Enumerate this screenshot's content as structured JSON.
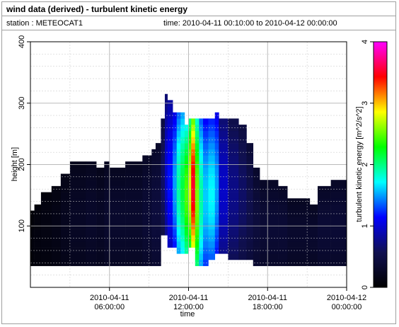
{
  "header": {
    "title": "wind data (derived) - turbulent kinetic energy",
    "station": "station : METEOCAT1",
    "time_range": "time: 2010-04-11 00:10:00 to 2010-04-12 00:00:00"
  },
  "chart_data": {
    "type": "heatmap",
    "title": "wind data (derived) - turbulent kinetic energy",
    "xlabel": "time",
    "ylabel": "height [m]",
    "colorbar_label": "turbulent kinetic energy [m^2/s^2]",
    "xlim": [
      0,
      24
    ],
    "ylim": [
      0,
      400
    ],
    "clim": [
      0,
      4
    ],
    "colormap": [
      "#000000",
      "#101050",
      "#0000ff",
      "#00ffff",
      "#00ff00",
      "#ffff00",
      "#ff0000",
      "#ff00ff"
    ],
    "x_ticks": [
      {
        "value": 6,
        "line1": "2010-04-11",
        "line2": "06:00:00"
      },
      {
        "value": 12,
        "line1": "2010-04-11",
        "line2": "12:00:00"
      },
      {
        "value": 18,
        "line1": "2010-04-11",
        "line2": "18:00:00"
      },
      {
        "value": 24,
        "line1": "2010-04-12",
        "line2": "00:00:00"
      }
    ],
    "y_ticks": [
      {
        "value": 100,
        "label": "100"
      },
      {
        "value": 200,
        "label": "200"
      },
      {
        "value": 300,
        "label": "300"
      },
      {
        "value": 400,
        "label": "400"
      }
    ],
    "colorbar_ticks": [
      {
        "value": 0,
        "label": "0"
      },
      {
        "value": 1,
        "label": "1"
      },
      {
        "value": 2,
        "label": "2"
      },
      {
        "value": 3,
        "label": "3"
      },
      {
        "value": 4,
        "label": "4"
      }
    ],
    "height_step": 10,
    "columns": [
      {
        "t0": 0.0,
        "t1": 0.3,
        "bottom": 35,
        "top": 125,
        "tke": [
          0.08
        ]
      },
      {
        "t0": 0.3,
        "t1": 0.8,
        "bottom": 35,
        "top": 135,
        "tke": [
          0.1
        ]
      },
      {
        "t0": 0.8,
        "t1": 1.6,
        "bottom": 35,
        "top": 155,
        "tke": [
          0.12
        ]
      },
      {
        "t0": 1.6,
        "t1": 2.3,
        "bottom": 35,
        "top": 165,
        "tke": [
          0.15
        ]
      },
      {
        "t0": 2.3,
        "t1": 3.0,
        "bottom": 35,
        "top": 185,
        "tke": [
          0.2
        ]
      },
      {
        "t0": 3.0,
        "t1": 4.2,
        "bottom": 35,
        "top": 205,
        "tke": [
          0.25
        ]
      },
      {
        "t0": 4.2,
        "t1": 5.0,
        "bottom": 35,
        "top": 205,
        "tke": [
          0.28
        ]
      },
      {
        "t0": 5.0,
        "t1": 5.6,
        "bottom": 35,
        "top": 195,
        "tke": [
          0.25
        ]
      },
      {
        "t0": 5.6,
        "t1": 6.0,
        "bottom": 35,
        "top": 205,
        "tke": [
          0.3
        ]
      },
      {
        "t0": 6.0,
        "t1": 7.2,
        "bottom": 35,
        "top": 195,
        "tke": [
          0.3
        ]
      },
      {
        "t0": 7.2,
        "t1": 8.5,
        "bottom": 35,
        "top": 205,
        "tke": [
          0.3
        ]
      },
      {
        "t0": 8.5,
        "t1": 9.2,
        "bottom": 35,
        "top": 215,
        "tke": [
          0.35
        ]
      },
      {
        "t0": 9.2,
        "t1": 9.5,
        "bottom": 35,
        "top": 225,
        "tke": [
          0.4
        ]
      },
      {
        "t0": 9.5,
        "t1": 9.9,
        "bottom": 35,
        "top": 235,
        "tke": [
          0.4
        ]
      },
      {
        "t0": 9.9,
        "t1": 10.2,
        "bottom": 85,
        "top": 275,
        "tke": [
          0.6
        ]
      },
      {
        "t0": 10.2,
        "t1": 10.4,
        "bottom": 85,
        "top": 315,
        "tke": [
          0.9
        ]
      },
      {
        "t0": 10.4,
        "t1": 10.8,
        "bottom": 65,
        "top": 305,
        "tke": [
          1.1
        ]
      },
      {
        "t0": 10.8,
        "t1": 11.1,
        "bottom": 65,
        "top": 285,
        "tke": [
          1.4
        ]
      },
      {
        "t0": 11.1,
        "t1": 11.4,
        "bottom": 55,
        "top": 285,
        "tke": [
          1.8
        ]
      },
      {
        "t0": 11.4,
        "t1": 11.7,
        "bottom": 55,
        "top": 285,
        "tke": [
          2.0
        ]
      },
      {
        "t0": 11.7,
        "t1": 12.0,
        "bottom": 55,
        "top": 265,
        "tke": [
          2.3
        ]
      },
      {
        "t0": 12.0,
        "t1": 12.2,
        "bottom": 65,
        "top": 275,
        "tke": [
          2.6
        ]
      },
      {
        "t0": 12.2,
        "t1": 12.5,
        "bottom": 65,
        "top": 275,
        "tke": [
          3.3
        ]
      },
      {
        "t0": 12.5,
        "t1": 12.8,
        "bottom": 35,
        "top": 275,
        "tke": [
          2.4
        ]
      },
      {
        "t0": 12.8,
        "t1": 13.1,
        "bottom": 35,
        "top": 275,
        "tke": [
          1.8
        ]
      },
      {
        "t0": 13.1,
        "t1": 13.5,
        "bottom": 35,
        "top": 275,
        "tke": [
          1.5
        ]
      },
      {
        "t0": 13.5,
        "t1": 14.0,
        "bottom": 45,
        "top": 275,
        "tke": [
          1.6
        ]
      },
      {
        "t0": 14.0,
        "t1": 14.3,
        "bottom": 55,
        "top": 285,
        "tke": [
          1.4
        ]
      },
      {
        "t0": 14.3,
        "t1": 15.0,
        "bottom": 55,
        "top": 275,
        "tke": [
          0.9
        ]
      },
      {
        "t0": 15.0,
        "t1": 15.8,
        "bottom": 45,
        "top": 275,
        "tke": [
          0.7
        ]
      },
      {
        "t0": 15.8,
        "t1": 16.4,
        "bottom": 45,
        "top": 265,
        "tke": [
          0.6
        ]
      },
      {
        "t0": 16.4,
        "t1": 16.9,
        "bottom": 45,
        "top": 235,
        "tke": [
          0.5
        ]
      },
      {
        "t0": 16.9,
        "t1": 17.4,
        "bottom": 35,
        "top": 195,
        "tke": [
          0.4
        ]
      },
      {
        "t0": 17.4,
        "t1": 18.8,
        "bottom": 35,
        "top": 175,
        "tke": [
          0.35
        ]
      },
      {
        "t0": 18.8,
        "t1": 19.5,
        "bottom": 35,
        "top": 165,
        "tke": [
          0.35
        ]
      },
      {
        "t0": 19.5,
        "t1": 21.2,
        "bottom": 35,
        "top": 145,
        "tke": [
          0.3
        ]
      },
      {
        "t0": 21.2,
        "t1": 21.8,
        "bottom": 35,
        "top": 135,
        "tke": [
          0.3
        ]
      },
      {
        "t0": 21.8,
        "t1": 22.8,
        "bottom": 35,
        "top": 165,
        "tke": [
          0.35
        ]
      },
      {
        "t0": 22.8,
        "t1": 24.0,
        "bottom": 35,
        "top": 175,
        "tke": [
          0.35
        ]
      }
    ]
  }
}
